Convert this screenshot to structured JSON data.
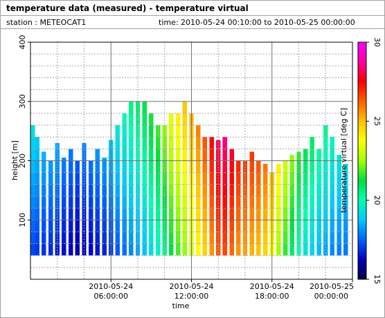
{
  "header": {
    "title": "temperature data (measured) - temperature virtual",
    "station": "station : METEOCAT1",
    "timespan": "time: 2010-05-24 00:10:00 to 2010-05-25 00:00:00"
  },
  "chart_data": {
    "type": "heatmap",
    "xlabel": "time",
    "ylabel": "height [m]",
    "zlabel": "temperature virtual [deg C]",
    "xlim": [
      0,
      24
    ],
    "ylim": [
      0,
      400
    ],
    "zlim": [
      15,
      30
    ],
    "y_ticks": [
      100,
      200,
      300,
      400
    ],
    "z_ticks": [
      15,
      20,
      25,
      30
    ],
    "x_ticks": [
      {
        "value": 6,
        "date": "2010-05-24",
        "time": "06:00:00"
      },
      {
        "value": 12,
        "date": "2010-05-24",
        "time": "12:00:00"
      },
      {
        "value": 18,
        "date": "2010-05-24",
        "time": "18:00:00"
      },
      {
        "value": 24,
        "date": "2010-05-25",
        "time": "00:00:00"
      }
    ],
    "grid": true,
    "colormap": [
      "#000040",
      "#0000c0",
      "#0060ff",
      "#00c8ff",
      "#00ffb0",
      "#00e040",
      "#a0ff00",
      "#ffff00",
      "#ffc000",
      "#ff6000",
      "#ff0000",
      "#ff00a0",
      "#ff00ff"
    ],
    "height_bins": [
      40,
      60,
      80,
      100,
      120,
      140,
      160,
      180,
      200,
      220,
      240,
      260,
      280,
      300,
      320
    ],
    "profiles": [
      {
        "t": 0.17,
        "top": 260,
        "temps": [
          17.2,
          17.4,
          17.6,
          17.8,
          18.0,
          18.2,
          18.4,
          18.6,
          18.8,
          19.0,
          19.2
        ]
      },
      {
        "t": 0.5,
        "top": 240,
        "temps": [
          17.0,
          17.2,
          17.4,
          17.6,
          17.8,
          18.0,
          18.2,
          18.4,
          18.6,
          18.8
        ]
      },
      {
        "t": 1.0,
        "top": 215,
        "temps": [
          16.9,
          17.1,
          17.3,
          17.5,
          17.7,
          17.9,
          18.1,
          18.3,
          18.5
        ]
      },
      {
        "t": 1.5,
        "top": 200,
        "temps": [
          16.8,
          17.0,
          17.2,
          17.4,
          17.6,
          17.8,
          18.0,
          18.2
        ]
      },
      {
        "t": 2.0,
        "top": 230,
        "temps": [
          16.6,
          16.8,
          17.0,
          17.2,
          17.4,
          17.6,
          17.8,
          18.0,
          18.2,
          18.4
        ]
      },
      {
        "t": 2.5,
        "top": 205,
        "temps": [
          16.4,
          16.6,
          16.8,
          17.0,
          17.2,
          17.4,
          17.6,
          17.8,
          18.0
        ]
      },
      {
        "t": 3.0,
        "top": 220,
        "temps": [
          16.2,
          16.4,
          16.6,
          16.8,
          17.0,
          17.2,
          17.4,
          17.6,
          17.8
        ]
      },
      {
        "t": 3.5,
        "top": 200,
        "temps": [
          16.0,
          16.2,
          16.4,
          16.6,
          16.8,
          17.0,
          17.2,
          17.4
        ]
      },
      {
        "t": 4.0,
        "top": 230,
        "temps": [
          16.1,
          16.3,
          16.5,
          16.7,
          16.9,
          17.1,
          17.3,
          17.5,
          17.7,
          17.9
        ]
      },
      {
        "t": 4.5,
        "top": 200,
        "temps": [
          16.3,
          16.5,
          16.7,
          16.9,
          17.1,
          17.3,
          17.5,
          17.7
        ]
      },
      {
        "t": 5.0,
        "top": 220,
        "temps": [
          16.5,
          16.7,
          16.9,
          17.1,
          17.3,
          17.5,
          17.7,
          17.9,
          18.1
        ]
      },
      {
        "t": 5.5,
        "top": 205,
        "temps": [
          16.7,
          16.9,
          17.1,
          17.3,
          17.5,
          17.7,
          17.9,
          18.1,
          18.3
        ]
      },
      {
        "t": 6.0,
        "top": 235,
        "temps": [
          17.0,
          17.2,
          17.4,
          17.6,
          17.8,
          18.0,
          18.2,
          18.4,
          18.6,
          18.8
        ]
      },
      {
        "t": 6.5,
        "top": 265,
        "temps": [
          17.4,
          17.6,
          17.8,
          18.0,
          18.2,
          18.4,
          18.6,
          18.8,
          19.0,
          19.2,
          19.4
        ]
      },
      {
        "t": 7.0,
        "top": 295,
        "temps": [
          17.7,
          17.9,
          18.1,
          18.3,
          18.5,
          18.7,
          18.9,
          19.1,
          19.3,
          19.5,
          19.7,
          19.9
        ]
      },
      {
        "t": 7.5,
        "top": 315,
        "temps": [
          18.0,
          18.2,
          18.4,
          18.6,
          18.8,
          19.0,
          19.2,
          19.4,
          19.6,
          19.8,
          20.0,
          20.2,
          20.4
        ]
      },
      {
        "t": 8.0,
        "top": 310,
        "temps": [
          18.3,
          18.5,
          18.7,
          18.9,
          19.1,
          19.3,
          19.5,
          19.7,
          19.9,
          20.1,
          20.3,
          20.5,
          20.7
        ]
      },
      {
        "t": 8.5,
        "top": 305,
        "temps": [
          18.7,
          18.9,
          19.1,
          19.3,
          19.5,
          19.7,
          19.9,
          20.1,
          20.3,
          20.5,
          20.7,
          20.9,
          21.1
        ]
      },
      {
        "t": 9.0,
        "top": 285,
        "temps": [
          19.2,
          19.4,
          19.6,
          19.8,
          20.0,
          20.2,
          20.4,
          20.6,
          20.8,
          21.0,
          21.2,
          21.4
        ]
      },
      {
        "t": 9.5,
        "top": 260,
        "temps": [
          19.7,
          19.9,
          20.1,
          20.3,
          20.5,
          20.7,
          20.9,
          21.1,
          21.3,
          21.5,
          21.7
        ]
      },
      {
        "t": 10.0,
        "top": 270,
        "temps": [
          20.4,
          20.6,
          20.8,
          21.0,
          21.2,
          21.4,
          21.6,
          21.8,
          22.0,
          22.2,
          22.4
        ]
      },
      {
        "t": 10.5,
        "top": 280,
        "temps": [
          21.2,
          21.4,
          21.6,
          21.8,
          22.0,
          22.2,
          22.4,
          22.6,
          22.8,
          23.0,
          23.2,
          23.4
        ]
      },
      {
        "t": 11.0,
        "top": 290,
        "temps": [
          21.8,
          22.0,
          22.2,
          22.4,
          22.6,
          22.8,
          23.0,
          23.2,
          23.4,
          23.6,
          23.8,
          24.0
        ]
      },
      {
        "t": 11.5,
        "top": 300,
        "temps": [
          22.4,
          22.6,
          22.8,
          23.0,
          23.2,
          23.4,
          23.6,
          23.8,
          24.0,
          24.2,
          24.4,
          24.6,
          24.8
        ]
      },
      {
        "t": 12.0,
        "top": 285,
        "temps": [
          23.0,
          23.2,
          23.4,
          23.6,
          23.8,
          24.0,
          24.2,
          24.4,
          24.6,
          24.8,
          25.0,
          25.2
        ]
      },
      {
        "t": 12.5,
        "top": 270,
        "temps": [
          23.8,
          24.0,
          24.2,
          24.4,
          24.6,
          24.8,
          25.0,
          25.2,
          25.4,
          25.6,
          25.8
        ]
      },
      {
        "t": 13.0,
        "top": 250,
        "temps": [
          24.6,
          24.8,
          25.0,
          25.2,
          25.4,
          25.6,
          25.8,
          26.0,
          26.2,
          26.4
        ]
      },
      {
        "t": 13.5,
        "top": 245,
        "temps": [
          25.6,
          25.8,
          26.0,
          26.2,
          26.4,
          26.6,
          26.8,
          27.0,
          27.2,
          27.4
        ]
      },
      {
        "t": 14.0,
        "top": 235,
        "temps": [
          26.4,
          26.6,
          26.8,
          27.0,
          27.2,
          27.4,
          27.6,
          27.8,
          28.0,
          28.2
        ]
      },
      {
        "t": 14.5,
        "top": 245,
        "temps": [
          26.6,
          26.8,
          27.0,
          27.2,
          27.4,
          27.6,
          27.8,
          28.0,
          28.2,
          28.4
        ]
      },
      {
        "t": 15.0,
        "top": 225,
        "temps": [
          26.2,
          26.4,
          26.6,
          26.8,
          27.0,
          27.2,
          27.4,
          27.6,
          27.8
        ]
      },
      {
        "t": 15.5,
        "top": 210,
        "temps": [
          25.6,
          25.8,
          26.0,
          26.2,
          26.4,
          26.6,
          26.8,
          27.0
        ]
      },
      {
        "t": 16.0,
        "top": 205,
        "temps": [
          25.4,
          25.6,
          25.8,
          26.0,
          26.2,
          26.4,
          26.6,
          26.8
        ]
      },
      {
        "t": 16.5,
        "top": 215,
        "temps": [
          25.2,
          25.4,
          25.6,
          25.8,
          26.0,
          26.2,
          26.4,
          26.6,
          26.8
        ]
      },
      {
        "t": 17.0,
        "top": 200,
        "temps": [
          25.0,
          25.2,
          25.4,
          25.6,
          25.8,
          26.0,
          26.2,
          26.4
        ]
      },
      {
        "t": 17.5,
        "top": 195,
        "temps": [
          24.6,
          24.8,
          25.0,
          25.2,
          25.4,
          25.6,
          25.8,
          26.0
        ]
      },
      {
        "t": 18.0,
        "top": 185,
        "temps": [
          23.8,
          24.0,
          24.2,
          24.4,
          24.6,
          24.8,
          25.0
        ]
      },
      {
        "t": 18.5,
        "top": 195,
        "temps": [
          22.6,
          22.8,
          23.0,
          23.2,
          23.4,
          23.6,
          23.8,
          24.0
        ]
      },
      {
        "t": 19.0,
        "top": 200,
        "temps": [
          21.6,
          21.8,
          22.0,
          22.2,
          22.4,
          22.6,
          22.8,
          23.0
        ]
      },
      {
        "t": 19.5,
        "top": 210,
        "temps": [
          20.8,
          21.0,
          21.2,
          21.4,
          21.6,
          21.8,
          22.0,
          22.2,
          22.4
        ]
      },
      {
        "t": 20.0,
        "top": 215,
        "temps": [
          20.0,
          20.2,
          20.4,
          20.6,
          20.8,
          21.0,
          21.2,
          21.4,
          21.6
        ]
      },
      {
        "t": 20.5,
        "top": 220,
        "temps": [
          19.4,
          19.6,
          19.8,
          20.0,
          20.2,
          20.4,
          20.6,
          20.8,
          21.0
        ]
      },
      {
        "t": 21.0,
        "top": 240,
        "temps": [
          19.0,
          19.2,
          19.4,
          19.6,
          19.8,
          20.0,
          20.2,
          20.4,
          20.6,
          20.8
        ]
      },
      {
        "t": 21.5,
        "top": 225,
        "temps": [
          18.6,
          18.8,
          19.0,
          19.2,
          19.4,
          19.6,
          19.8,
          20.0,
          20.2
        ]
      },
      {
        "t": 22.0,
        "top": 265,
        "temps": [
          18.3,
          18.5,
          18.7,
          18.9,
          19.1,
          19.3,
          19.5,
          19.7,
          19.9,
          20.1,
          20.3
        ]
      },
      {
        "t": 22.5,
        "top": 240,
        "temps": [
          18.0,
          18.2,
          18.4,
          18.6,
          18.8,
          19.0,
          19.2,
          19.4,
          19.6,
          19.8
        ]
      },
      {
        "t": 23.0,
        "top": 210,
        "temps": [
          17.9,
          18.1,
          18.3,
          18.5,
          18.7,
          18.9,
          19.1,
          19.3,
          19.5
        ]
      },
      {
        "t": 23.5,
        "top": 195,
        "temps": [
          17.8,
          18.0,
          18.2,
          18.4,
          18.6,
          18.8,
          19.0,
          19.2
        ]
      }
    ]
  }
}
